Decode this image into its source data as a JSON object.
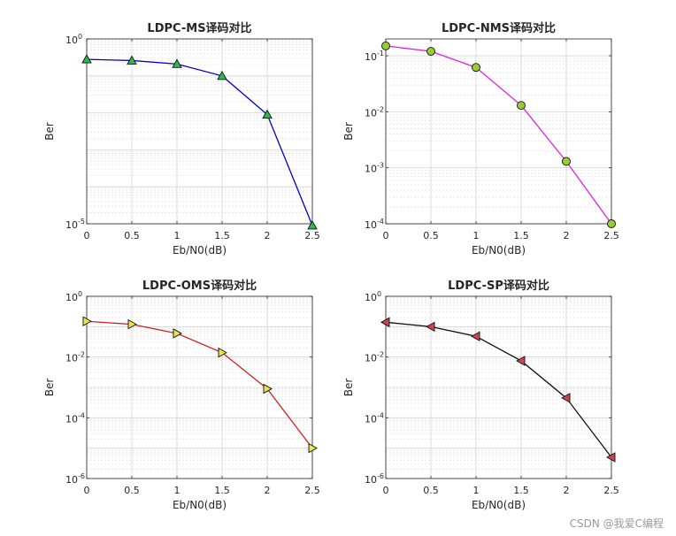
{
  "watermark": "CSDN @我爱C编程",
  "chart_data": [
    {
      "type": "line",
      "title": "LDPC-MS译码对比",
      "xlabel": "Eb/N0(dB)",
      "ylabel": "Ber",
      "yscale": "log",
      "x": [
        0,
        0.5,
        1,
        1.5,
        2,
        2.5
      ],
      "series": [
        {
          "values": [
            0.28,
            0.26,
            0.21,
            0.1,
            0.009,
            9e-06
          ]
        }
      ],
      "xlim": [
        0,
        2.5
      ],
      "ylim": [
        1e-05,
        1
      ],
      "xticks": [
        "0",
        "0.5",
        "1",
        "1.5",
        "2",
        "2.5"
      ],
      "yticks": [
        {
          "base": "10",
          "exp": "0"
        },
        {
          "base": "10",
          "exp": "-5"
        }
      ],
      "ytick_exps": [
        0,
        -5
      ],
      "grid": true,
      "color": "#0000cc",
      "marker": "triangle-up",
      "marker_color": "#2db84d"
    },
    {
      "type": "line",
      "title": "LDPC-NMS译码对比",
      "xlabel": "Eb/N0(dB)",
      "ylabel": "Ber",
      "yscale": "log",
      "x": [
        0,
        0.5,
        1,
        1.5,
        2,
        2.5
      ],
      "series": [
        {
          "values": [
            0.15,
            0.12,
            0.062,
            0.013,
            0.0013,
            0.0001
          ]
        }
      ],
      "xlim": [
        0,
        2.5
      ],
      "ylim": [
        0.0001,
        0.2
      ],
      "xticks": [
        "0",
        "0.5",
        "1",
        "1.5",
        "2",
        "2.5"
      ],
      "yticks": [
        {
          "base": "10",
          "exp": "-1"
        },
        {
          "base": "10",
          "exp": "-2"
        },
        {
          "base": "10",
          "exp": "-3"
        },
        {
          "base": "10",
          "exp": "-4"
        }
      ],
      "ytick_exps": [
        -1,
        -2,
        -3,
        -4
      ],
      "grid": true,
      "color": "#dd22dd",
      "marker": "circle",
      "marker_color": "#99cc33"
    },
    {
      "type": "line",
      "title": "LDPC-OMS译码对比",
      "xlabel": "Eb/N0(dB)",
      "ylabel": "Ber",
      "yscale": "log",
      "x": [
        0,
        0.5,
        1,
        1.5,
        2,
        2.5
      ],
      "series": [
        {
          "values": [
            0.15,
            0.12,
            0.06,
            0.014,
            0.0009,
            1e-05
          ]
        }
      ],
      "xlim": [
        0,
        2.5
      ],
      "ylim": [
        1e-06,
        1
      ],
      "xticks": [
        "0",
        "0.5",
        "1",
        "1.5",
        "2",
        "2.5"
      ],
      "yticks": [
        {
          "base": "10",
          "exp": "0"
        },
        {
          "base": "10",
          "exp": "-2"
        },
        {
          "base": "10",
          "exp": "-4"
        },
        {
          "base": "10",
          "exp": "-6"
        }
      ],
      "ytick_exps": [
        0,
        -2,
        -4,
        -6
      ],
      "grid": true,
      "color": "#cc2222",
      "marker": "triangle-right",
      "marker_color": "#e6e64d"
    },
    {
      "type": "line",
      "title": "LDPC-SP译码对比",
      "xlabel": "Eb/N0(dB)",
      "ylabel": "Ber",
      "yscale": "log",
      "x": [
        0,
        0.5,
        1,
        1.5,
        2,
        2.5
      ],
      "series": [
        {
          "values": [
            0.14,
            0.1,
            0.048,
            0.0075,
            0.00045,
            5e-06
          ]
        }
      ],
      "xlim": [
        0,
        2.5
      ],
      "ylim": [
        1e-06,
        1
      ],
      "xticks": [
        "0",
        "0.5",
        "1",
        "1.5",
        "2",
        "2.5"
      ],
      "yticks": [
        {
          "base": "10",
          "exp": "0"
        },
        {
          "base": "10",
          "exp": "-2"
        },
        {
          "base": "10",
          "exp": "-4"
        },
        {
          "base": "10",
          "exp": "-6"
        }
      ],
      "ytick_exps": [
        0,
        -2,
        -4,
        -6
      ],
      "grid": true,
      "color": "#111111",
      "marker": "triangle-left",
      "marker_color": "#cc4455"
    }
  ]
}
